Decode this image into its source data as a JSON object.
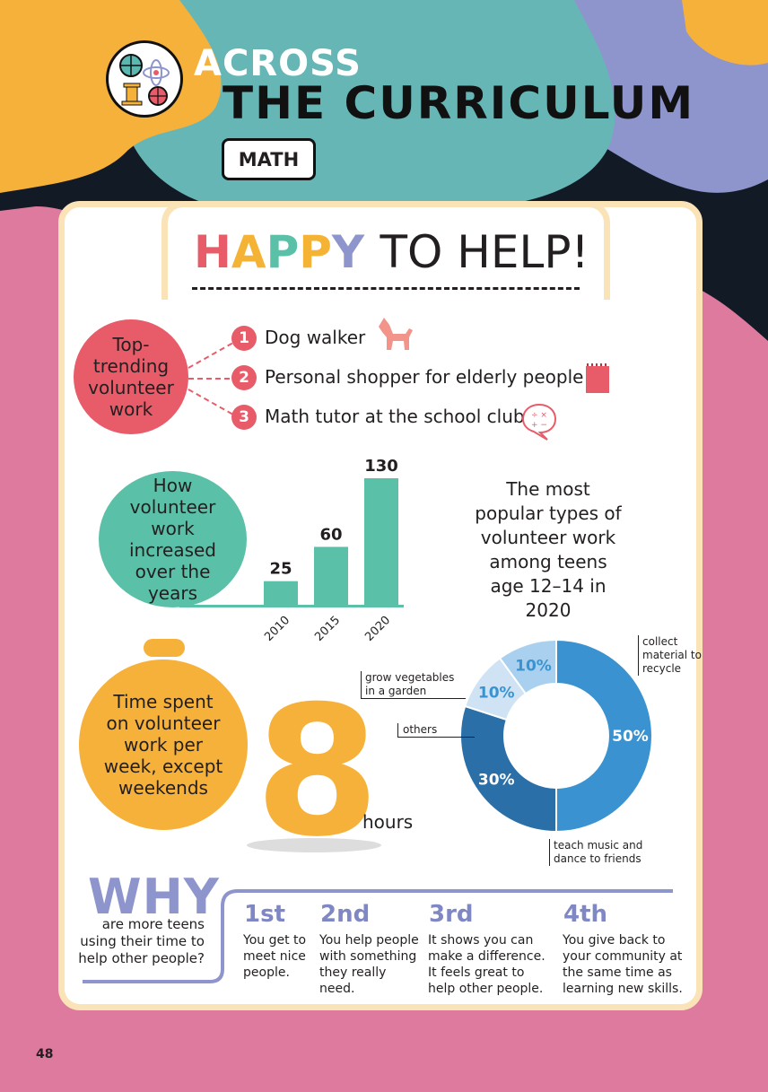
{
  "header": {
    "title_line1": "ACROSS",
    "title_line2": "THE CURRICULUM",
    "subject_badge": "MATH",
    "logo_icons": [
      "globe-icon",
      "atom-icon",
      "column-icon",
      "basketball-icon"
    ]
  },
  "main": {
    "title_letters": [
      "H",
      "A",
      "P",
      "P",
      "Y"
    ],
    "title_letter_colors": [
      "#e85c6a",
      "#f5b335",
      "#5bc0a8",
      "#f5b335",
      "#8e95cc"
    ],
    "title_rest": "TO HELP!"
  },
  "trending": {
    "circle_label": "Top-trending volunteer work",
    "items": [
      {
        "num": "1",
        "label": "Dog walker",
        "icon": "dog-icon"
      },
      {
        "num": "2",
        "label": "Personal shopper for elderly people",
        "icon": "notepad-icon"
      },
      {
        "num": "3",
        "label": "Math tutor at the school club",
        "icon": "math-bubble-icon"
      }
    ]
  },
  "growth": {
    "circle_label": "How volunteer work increased over the years",
    "chart_data": {
      "type": "bar",
      "categories": [
        "2010",
        "2015",
        "2020"
      ],
      "values": [
        25,
        60,
        130
      ]
    }
  },
  "popular": {
    "heading": "The most popular types of volunteer work among teens age 12–14 in 2020",
    "chart_data": {
      "type": "pie",
      "slices": [
        {
          "label": "collect material to recycle",
          "value": 50,
          "color": "#3a93d0"
        },
        {
          "label": "teach music and dance to friends",
          "value": 30,
          "color": "#2a6fa8"
        },
        {
          "label": "others",
          "value": 10,
          "color": "#cfe3f4"
        },
        {
          "label": "grow vegetables in a garden",
          "value": 10,
          "color": "#a9d0ee"
        }
      ],
      "display": [
        "50%",
        "30%",
        "10%",
        "10%"
      ]
    }
  },
  "time": {
    "circle_label": "Time spent on volunteer work per week, except weekends",
    "value": "8",
    "unit": "hours"
  },
  "why": {
    "title": "WHY",
    "subtitle": "are more teens using their time to help other people?",
    "reasons": [
      {
        "rank": "1st",
        "text": "You get to meet nice people."
      },
      {
        "rank": "2nd",
        "text": "You help people with something they really need."
      },
      {
        "rank": "3rd",
        "text": "It shows you can make a difference. It feels great to help other people."
      },
      {
        "rank": "4th",
        "text": "You give back to your community at the same time as learning new skills."
      }
    ]
  },
  "page_number": "48"
}
